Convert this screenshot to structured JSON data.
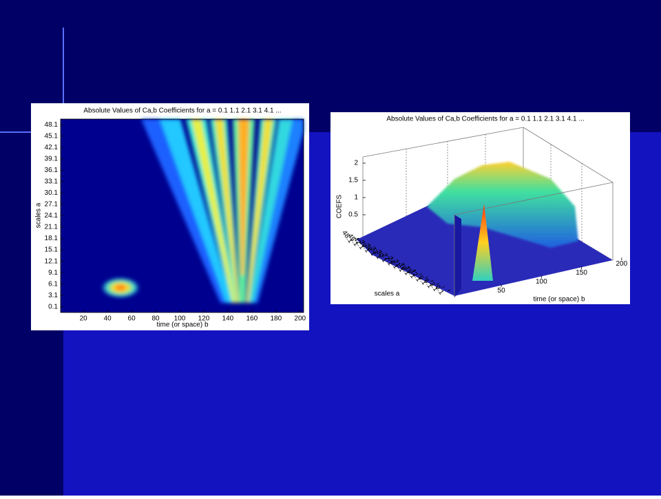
{
  "chart_data": [
    {
      "type": "heatmap",
      "title": "Absolute Values of Ca,b Coefficients for a =  0.1 1.1 2.1 3.1 4.1 ...",
      "x_label": "time (or space) b",
      "y_label": "scales a",
      "xlim": [
        1,
        203
      ],
      "xticks": [
        20,
        40,
        60,
        80,
        100,
        120,
        140,
        160,
        180,
        200
      ],
      "ylim": [
        -1.4,
        49.6
      ],
      "yticks": [
        0.1,
        3.1,
        6.1,
        9.1,
        12.1,
        15.1,
        18.1,
        21.1,
        24.1,
        27.1,
        30.1,
        33.1,
        36.1,
        39.1,
        42.1,
        45.1,
        48.1
      ]
    },
    {
      "type": "surface",
      "title": "Absolute Values of Ca,b Coefficients for a =  0.1 1.1 2.1 3.1 4.1 ...",
      "x_label": "time (or space) b",
      "y_label": "scales a",
      "z_label": "COEFS",
      "xlim": [
        1,
        201
      ],
      "xticks": [
        50,
        100,
        150,
        200
      ],
      "ylim": [
        0.1,
        48.1
      ],
      "yticks": [
        0.1,
        3.1,
        6.1,
        9.1,
        12.1,
        15.1,
        18.1,
        21.1,
        24.1,
        27.1,
        30.1,
        33.1,
        36.1,
        39.1,
        42.1,
        45.1,
        48.1
      ],
      "zlim": [
        0,
        2.3
      ],
      "zticks": [
        0.5,
        1,
        1.5,
        2
      ]
    }
  ]
}
